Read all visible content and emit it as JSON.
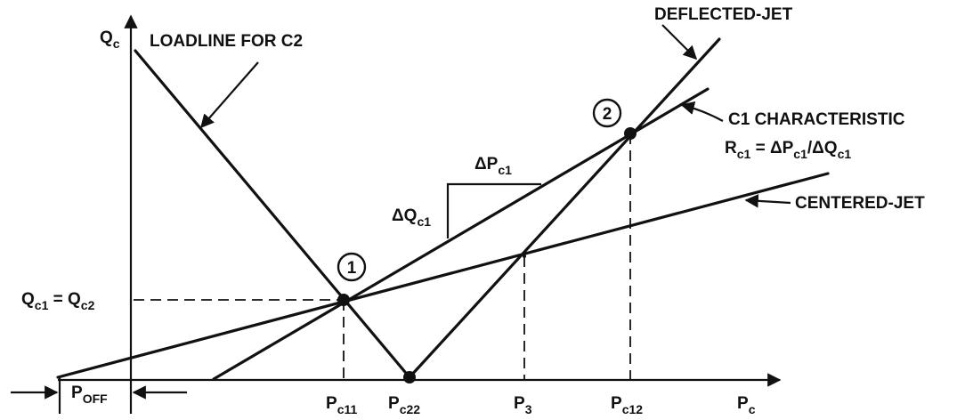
{
  "axes": {
    "y_label": "Q",
    "y_label_sub": "c",
    "x_label": "P",
    "x_label_sub": "c"
  },
  "lines": {
    "loadline": "LOADLINE FOR C2",
    "deflected": "DEFLECTED-JET",
    "characteristic": "C1 CHARACTERISTIC",
    "centered": "CENTERED-JET"
  },
  "resistance": {
    "r": "R",
    "r_sub": "c1",
    "eq": " = ΔP",
    "p_sub": "c1",
    "slash": "/ΔQ",
    "q_sub": "c1"
  },
  "delta_p": {
    "main": "ΔP",
    "sub": "c1"
  },
  "delta_q": {
    "main": "ΔQ",
    "sub": "c1"
  },
  "points": {
    "one": "1",
    "two": "2"
  },
  "q_equal": {
    "q1": "Q",
    "q1_sub": "c1",
    "eq": " = Q",
    "q2_sub": "c2"
  },
  "ticks": {
    "pc11": {
      "main": "P",
      "sub": "c11"
    },
    "pc22": {
      "main": "P",
      "sub": "c22"
    },
    "p3": {
      "main": "P",
      "sub": "3"
    },
    "pc12": {
      "main": "P",
      "sub": "c12"
    }
  },
  "poff": {
    "main": "P",
    "sub": "OFF"
  }
}
